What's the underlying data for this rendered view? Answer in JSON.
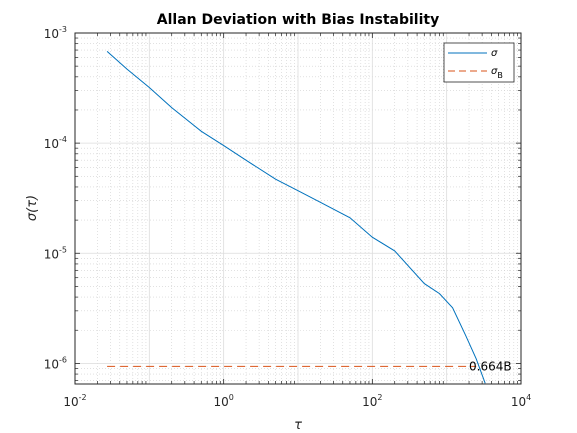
{
  "chart_data": {
    "type": "line",
    "title": "Allan Deviation with Bias Instability",
    "xlabel": "τ",
    "ylabel": "σ(τ)",
    "xscale": "log",
    "yscale": "log",
    "xlim": [
      0.01,
      10000
    ],
    "ylim": [
      6.5e-07,
      0.001
    ],
    "grid": true,
    "legend_position": "top-right",
    "x_ticks": [
      {
        "value": 0.01,
        "base": "10",
        "exp": "-2"
      },
      {
        "value": 1,
        "base": "10",
        "exp": "0"
      },
      {
        "value": 100,
        "base": "10",
        "exp": "2"
      },
      {
        "value": 10000,
        "base": "10",
        "exp": "4"
      }
    ],
    "y_ticks": [
      {
        "value": 1e-06,
        "base": "10",
        "exp": "-6"
      },
      {
        "value": 1e-05,
        "base": "10",
        "exp": "-5"
      },
      {
        "value": 0.0001,
        "base": "10",
        "exp": "-4"
      },
      {
        "value": 0.001,
        "base": "10",
        "exp": "-3"
      }
    ],
    "series": [
      {
        "name": "σ",
        "color": "#0072bd",
        "style": "solid",
        "x": [
          0.027,
          0.05,
          0.1,
          0.2,
          0.5,
          1,
          2,
          5,
          10,
          20,
          50,
          100,
          200,
          500,
          800,
          1200,
          1800,
          2500,
          3300
        ],
        "y": [
          0.00068,
          0.00047,
          0.00032,
          0.00021,
          0.000128,
          9.5e-05,
          7e-05,
          4.7e-05,
          3.7e-05,
          2.9e-05,
          2.1e-05,
          1.4e-05,
          1.05e-05,
          5.3e-06,
          4.3e-06,
          3.2e-06,
          1.8e-06,
          1.1e-06,
          6.6e-07
        ]
      },
      {
        "name": "σ",
        "name_subscript": "B",
        "color": "#d95319",
        "style": "dashed",
        "x": [
          0.027,
          2500
        ],
        "y": [
          9.4e-07,
          9.4e-07
        ]
      }
    ],
    "annotations": [
      {
        "text": "0.664B",
        "x": 2000,
        "y": 9.4e-07
      }
    ]
  }
}
